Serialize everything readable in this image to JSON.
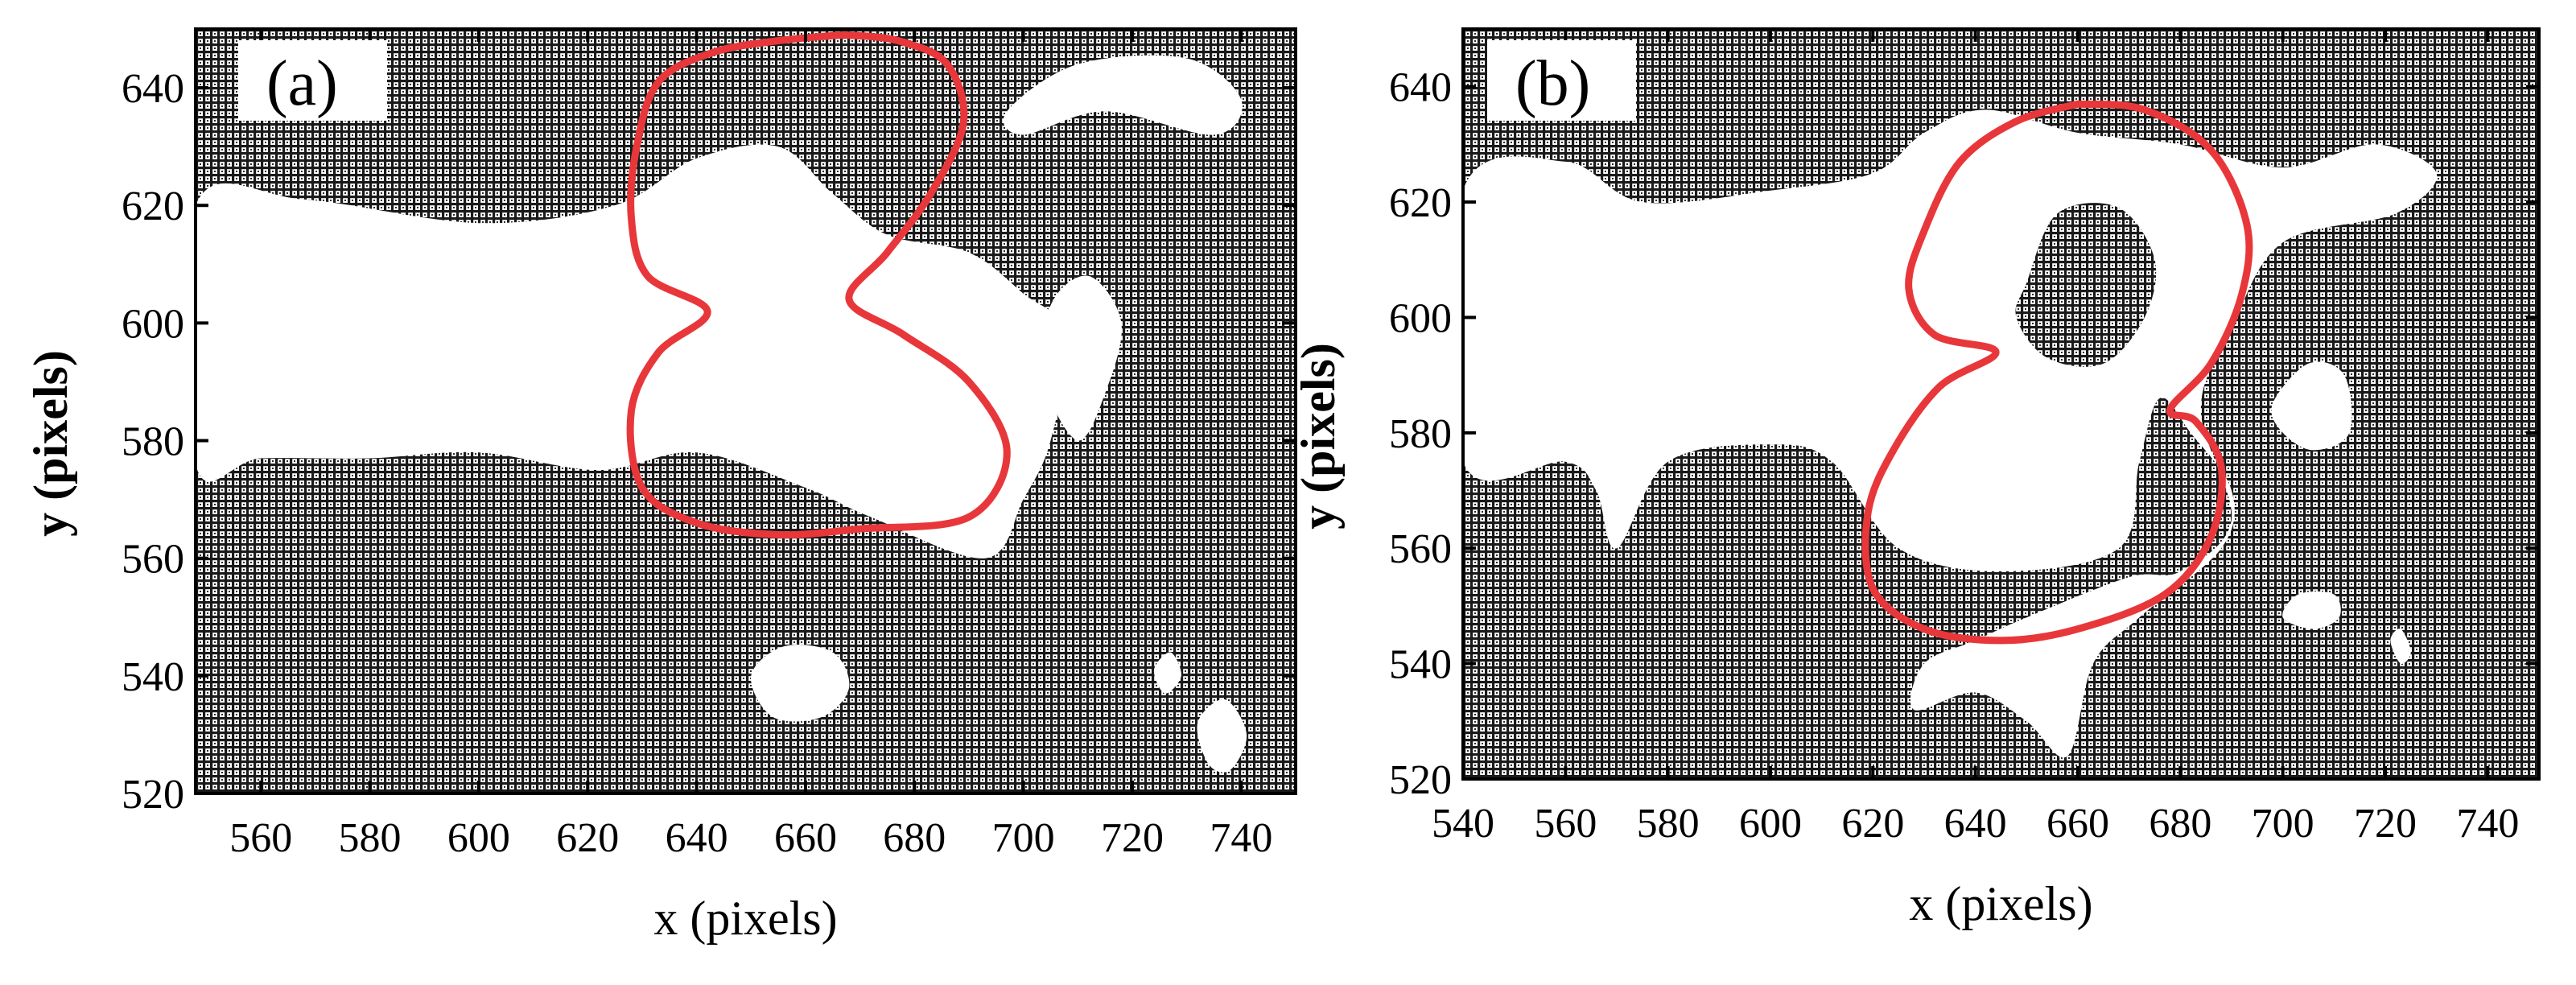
{
  "colors": {
    "region_dark": "#1a1a1a",
    "region_light": "#ffffff",
    "contour": "#e8373a",
    "axis": "#000000"
  },
  "chart_data": [
    {
      "type": "heatmap",
      "panel_label": "(a)",
      "xlabel": "x (pixels)",
      "ylabel": "y (pixels)",
      "xlim": [
        548,
        750
      ],
      "ylim": [
        520,
        650
      ],
      "xticks": [
        560,
        580,
        600,
        620,
        640,
        660,
        680,
        700,
        720,
        740
      ],
      "yticks": [
        520,
        540,
        560,
        580,
        600,
        620,
        640
      ],
      "xtick_labels": [
        "560",
        "580",
        "600",
        "620",
        "640",
        "660",
        "680",
        "700",
        "720",
        "740"
      ],
      "ytick_labels": [
        "520",
        "540",
        "560",
        "580",
        "600",
        "620",
        "640"
      ],
      "grid": true,
      "binary_map": "dense black dot grid (phase region) with white (void) regions",
      "white_regions": [
        {
          "shape": "band",
          "points": [
            [
              548,
              620
            ],
            [
              568,
              621
            ],
            [
              600,
              617
            ],
            [
              625,
              620
            ],
            [
              640,
              628
            ],
            [
              655,
              630
            ],
            [
              665,
              622
            ],
            [
              675,
              615
            ],
            [
              690,
              612
            ],
            [
              700,
              605
            ],
            [
              708,
              598
            ],
            [
              705,
              580
            ],
            [
              700,
              570
            ],
            [
              693,
              560
            ],
            [
              672,
              567
            ],
            [
              660,
              572
            ],
            [
              640,
              578
            ],
            [
              622,
              575
            ],
            [
              600,
              578
            ],
            [
              580,
              577
            ],
            [
              560,
              577
            ],
            [
              548,
              576
            ]
          ]
        },
        {
          "shape": "blob",
          "points": [
            [
              697,
              636
            ],
            [
              710,
              644
            ],
            [
              730,
              645
            ],
            [
              740,
              638
            ],
            [
              735,
              632
            ],
            [
              715,
              636
            ],
            [
              700,
              632
            ]
          ]
        },
        {
          "shape": "blob",
          "points": [
            [
              705,
              603
            ],
            [
              712,
              608
            ],
            [
              718,
              600
            ],
            [
              715,
              588
            ],
            [
              710,
              580
            ],
            [
              704,
              590
            ]
          ]
        },
        {
          "shape": "blob",
          "points": [
            [
              650,
              540
            ],
            [
              656,
              545
            ],
            [
              665,
              544
            ],
            [
              668,
              538
            ],
            [
              663,
              533
            ],
            [
              654,
              533
            ]
          ]
        },
        {
          "shape": "blob",
          "points": [
            [
              732,
              532
            ],
            [
              737,
              536
            ],
            [
              741,
              530
            ],
            [
              738,
              524
            ],
            [
              734,
              525
            ]
          ]
        },
        {
          "shape": "blob",
          "points": [
            [
              724,
              541
            ],
            [
              727,
              544
            ],
            [
              729,
              540
            ],
            [
              726,
              537
            ]
          ]
        }
      ],
      "contour": [
        [
          667,
          649
        ],
        [
          655,
          648
        ],
        [
          643,
          646
        ],
        [
          633,
          641
        ],
        [
          629,
          630
        ],
        [
          628,
          618
        ],
        [
          631,
          608
        ],
        [
          642,
          602
        ],
        [
          633,
          595
        ],
        [
          628,
          585
        ],
        [
          630,
          572
        ],
        [
          640,
          566
        ],
        [
          655,
          564
        ],
        [
          670,
          565
        ],
        [
          690,
          567
        ],
        [
          697,
          578
        ],
        [
          690,
          590
        ],
        [
          678,
          598
        ],
        [
          668,
          604
        ],
        [
          675,
          612
        ],
        [
          683,
          622
        ],
        [
          689,
          634
        ],
        [
          686,
          644
        ],
        [
          677,
          648
        ],
        [
          667,
          649
        ]
      ]
    },
    {
      "type": "heatmap",
      "panel_label": "(b)",
      "xlabel": "x (pixels)",
      "ylabel": "y (pixels)",
      "xlim": [
        540,
        750
      ],
      "ylim": [
        520,
        650
      ],
      "xticks": [
        540,
        560,
        580,
        600,
        620,
        640,
        660,
        680,
        700,
        720,
        740
      ],
      "yticks": [
        520,
        540,
        560,
        580,
        600,
        620,
        640
      ],
      "xtick_labels": [
        "540",
        "560",
        "580",
        "600",
        "620",
        "640",
        "660",
        "680",
        "700",
        "720",
        "740"
      ],
      "ytick_labels": [
        "520",
        "540",
        "560",
        "580",
        "600",
        "620",
        "640"
      ],
      "grid": true,
      "binary_map": "dense black dot grid (phase region) with white (void) regions",
      "white_regions": [
        {
          "shape": "band",
          "points": [
            [
              540,
              622
            ],
            [
              560,
              627
            ],
            [
              575,
              620
            ],
            [
              600,
              622
            ],
            [
              620,
              625
            ],
            [
              630,
              632
            ],
            [
              642,
              636
            ],
            [
              660,
              632
            ],
            [
              680,
              630
            ],
            [
              700,
              626
            ],
            [
              718,
              630
            ],
            [
              730,
              625
            ],
            [
              722,
              618
            ],
            [
              700,
              613
            ],
            [
              690,
              598
            ],
            [
              684,
              584
            ],
            [
              690,
              565
            ],
            [
              680,
              556
            ],
            [
              670,
              555
            ],
            [
              650,
              548
            ],
            [
              640,
              544
            ],
            [
              630,
              540
            ],
            [
              628,
              532
            ],
            [
              640,
              535
            ],
            [
              650,
              530
            ],
            [
              658,
              524
            ],
            [
              663,
              540
            ],
            [
              672,
              548
            ],
            [
              688,
              560
            ],
            [
              690,
              570
            ],
            [
              682,
              580
            ],
            [
              676,
              586
            ],
            [
              672,
              575
            ],
            [
              668,
              560
            ],
            [
              645,
              556
            ],
            [
              625,
              560
            ],
            [
              612,
              575
            ],
            [
              600,
              578
            ],
            [
              580,
              575
            ],
            [
              570,
              560
            ],
            [
              566,
              570
            ],
            [
              560,
              575
            ],
            [
              540,
              575
            ]
          ]
        },
        {
          "shape": "hole",
          "points": [
            [
              650,
              606
            ],
            [
              656,
              618
            ],
            [
              668,
              619
            ],
            [
              675,
              610
            ],
            [
              673,
              600
            ],
            [
              665,
              592
            ],
            [
              654,
              593
            ],
            [
              648,
              600
            ]
          ]
        },
        {
          "shape": "blob",
          "points": [
            [
              698,
              585
            ],
            [
              705,
              592
            ],
            [
              712,
              590
            ],
            [
              713,
              580
            ],
            [
              706,
              577
            ],
            [
              700,
              580
            ]
          ]
        },
        {
          "shape": "blob",
          "points": [
            [
              700,
              548
            ],
            [
              703,
              552
            ],
            [
              710,
              552
            ],
            [
              711,
              548
            ],
            [
              706,
              546
            ]
          ]
        },
        {
          "shape": "blob",
          "points": [
            [
              721,
              544
            ],
            [
              723,
              546
            ],
            [
              725,
              542
            ],
            [
              723,
              540
            ]
          ]
        }
      ],
      "contour": [
        [
          660,
          637
        ],
        [
          648,
          634
        ],
        [
          637,
          627
        ],
        [
          630,
          615
        ],
        [
          627,
          605
        ],
        [
          632,
          597
        ],
        [
          644,
          594
        ],
        [
          633,
          588
        ],
        [
          624,
          577
        ],
        [
          619,
          566
        ],
        [
          620,
          553
        ],
        [
          630,
          546
        ],
        [
          645,
          544
        ],
        [
          660,
          546
        ],
        [
          677,
          552
        ],
        [
          686,
          562
        ],
        [
          688,
          574
        ],
        [
          683,
          582
        ],
        [
          678,
          584
        ],
        [
          686,
          592
        ],
        [
          692,
          604
        ],
        [
          693,
          616
        ],
        [
          686,
          629
        ],
        [
          673,
          636
        ],
        [
          660,
          637
        ]
      ]
    }
  ]
}
